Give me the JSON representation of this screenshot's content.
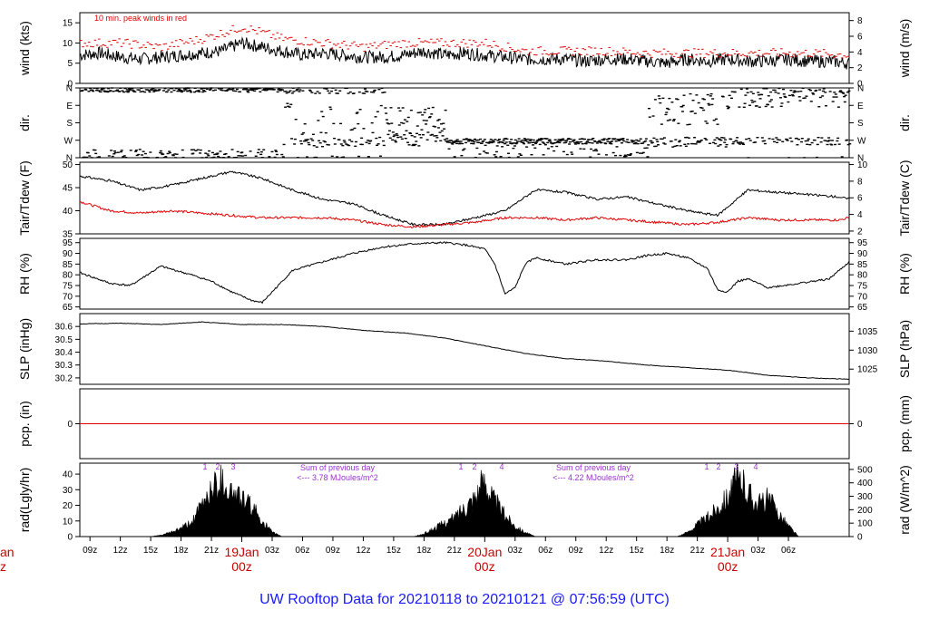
{
  "footer_title": "UW Rooftop Data for 20210118  to  20210121 @ 07:56:59  (UTC)",
  "colors": {
    "black": "#000000",
    "red": "#e00000",
    "purple": "#9933cc",
    "blue": "#1a1aff",
    "darkred": "#cc0000"
  },
  "chart_data": [
    {
      "type": "line",
      "ylabel_left": "wind (kts)",
      "ylabel_right": "wind (m/s)",
      "annotation": "10 min. peak winds in red",
      "ylim": [
        0,
        17.5
      ],
      "yticks_left": [
        0,
        5,
        10,
        15
      ],
      "yticks_right": [
        0,
        2,
        4,
        6,
        8
      ],
      "series": [
        {
          "color": "#000000",
          "x": [
            0,
            2,
            4,
            6,
            8,
            10,
            12,
            14,
            16,
            18,
            20,
            22,
            24,
            26,
            28,
            30,
            32,
            34,
            36,
            38,
            40,
            42,
            44,
            46,
            48,
            50,
            52,
            54,
            56,
            58,
            60,
            62,
            64,
            66,
            68,
            70,
            72,
            74,
            76
          ],
          "values": [
            7,
            7.5,
            6.5,
            6,
            6.5,
            7,
            7.5,
            8,
            10,
            9,
            8,
            7,
            7.5,
            7,
            6.5,
            6.5,
            7,
            8,
            7,
            7.5,
            7,
            6.5,
            6,
            6,
            6,
            5.5,
            6,
            6,
            5.5,
            5,
            6,
            5.5,
            6,
            5.5,
            5.5,
            6,
            5.5,
            5.5,
            5
          ]
        },
        {
          "color": "#e00000",
          "x": [
            0,
            4,
            8,
            12,
            16,
            20,
            24,
            28,
            32,
            36,
            40,
            44,
            48,
            52,
            56,
            60,
            64,
            68,
            72,
            76
          ],
          "values": [
            10,
            10,
            9,
            11,
            14,
            11,
            10,
            9,
            10,
            10,
            10,
            8,
            8,
            8,
            7.5,
            7.5,
            7.5,
            7.5,
            7.5,
            7
          ]
        }
      ]
    },
    {
      "type": "scatter",
      "ylabel_left": "dir.",
      "ylabel_right": "dir.",
      "yticks_left": [
        "N",
        "W",
        "S",
        "E",
        "N"
      ],
      "yticks_right": [
        "N",
        "W",
        "S",
        "E",
        "N"
      ],
      "ylim": [
        0,
        360
      ]
    },
    {
      "type": "line",
      "ylabel_left": "Tair/Tdew (F)",
      "ylabel_right": "Tair/Tdew (C)",
      "ylim": [
        35,
        50.5
      ],
      "yticks_left": [
        35,
        40,
        45,
        50
      ],
      "yticks_right": [
        2,
        4,
        6,
        8,
        10
      ],
      "series": [
        {
          "color": "#000000",
          "x": [
            0,
            3,
            6,
            9,
            12,
            15,
            18,
            21,
            24,
            27,
            30,
            33,
            36,
            39,
            42,
            45,
            48,
            51,
            54,
            57,
            60,
            63,
            66,
            69,
            72,
            75,
            76
          ],
          "values": [
            47.5,
            46.5,
            44.5,
            45.5,
            47,
            48.5,
            47,
            44.5,
            42.5,
            41.5,
            39,
            37,
            37,
            38.5,
            40,
            44.5,
            44,
            42.5,
            43,
            41.5,
            40,
            39,
            44.5,
            44,
            43.5,
            43,
            42.5
          ]
        },
        {
          "color": "#e00000",
          "x": [
            0,
            3,
            6,
            9,
            12,
            15,
            18,
            21,
            24,
            27,
            30,
            33,
            36,
            39,
            42,
            45,
            48,
            51,
            54,
            57,
            60,
            63,
            66,
            69,
            72,
            75,
            76
          ],
          "values": [
            42,
            40,
            39.5,
            40,
            39.5,
            39,
            38.5,
            38.5,
            38.5,
            38,
            37,
            36.5,
            37,
            37.5,
            38.5,
            38.5,
            38,
            38.5,
            38,
            37.5,
            37,
            37.5,
            38.5,
            38,
            38,
            38,
            38.5
          ]
        }
      ]
    },
    {
      "type": "line",
      "ylabel_left": "RH (%)",
      "ylabel_right": "RH (%)",
      "ylim": [
        64,
        97
      ],
      "yticks": [
        65,
        70,
        75,
        80,
        85,
        90,
        95
      ],
      "series": [
        {
          "color": "#000000",
          "x": [
            0,
            3,
            5,
            8,
            11,
            13,
            15,
            17,
            18,
            21,
            24,
            27,
            30,
            33,
            36,
            38,
            40,
            41,
            42,
            43,
            44,
            45,
            48,
            51,
            54,
            56,
            58,
            60,
            62,
            63,
            64,
            65,
            66,
            68,
            71,
            74,
            76
          ],
          "values": [
            81,
            76,
            75,
            84,
            80,
            77,
            72,
            68,
            67,
            82,
            86,
            90,
            93,
            94.5,
            95,
            94,
            92,
            85,
            71,
            74,
            85,
            88,
            85,
            87,
            87,
            89,
            90,
            88,
            83,
            73,
            72,
            77,
            78,
            74,
            76,
            78,
            86
          ]
        }
      ]
    },
    {
      "type": "line",
      "ylabel_left": "SLP (inHg)",
      "ylabel_right": "SLP (hPa)",
      "ylim": [
        30.15,
        30.7
      ],
      "yticks_left": [
        "30.2",
        "30.3",
        "30.4",
        "30.5",
        "30.6"
      ],
      "yticks_right": [
        "1025",
        "1030",
        "1035"
      ],
      "series": [
        {
          "color": "#000000",
          "x": [
            0,
            4,
            8,
            10,
            12,
            16,
            20,
            24,
            28,
            32,
            36,
            40,
            44,
            48,
            52,
            56,
            60,
            64,
            68,
            72,
            76
          ],
          "values": [
            30.62,
            30.625,
            30.615,
            30.625,
            30.635,
            30.615,
            30.615,
            30.6,
            30.57,
            30.55,
            30.51,
            30.45,
            30.39,
            30.35,
            30.33,
            30.3,
            30.28,
            30.26,
            30.22,
            30.2,
            30.19
          ]
        }
      ]
    },
    {
      "type": "line",
      "ylabel_left": "pcp. (in)",
      "ylabel_right": "pcp. (mm)",
      "ylim": [
        -1,
        1
      ],
      "yticks_left": [
        "0"
      ],
      "yticks_right": [
        "0"
      ],
      "series": [
        {
          "color": "#e00000",
          "x": [
            0,
            76
          ],
          "values": [
            0,
            0
          ]
        }
      ]
    },
    {
      "type": "area",
      "ylabel_left": "rad(Lgly/hr)",
      "ylabel_right": "rad (W/m^2)",
      "ylim": [
        0,
        47
      ],
      "yticks_left": [
        0,
        10,
        20,
        30,
        40
      ],
      "yticks_right": [
        0,
        100,
        200,
        300,
        400,
        500
      ],
      "series": [
        {
          "color": "#000000",
          "x": [
            7,
            8,
            9,
            10,
            11,
            12,
            13,
            14,
            15,
            16,
            17,
            18,
            19,
            20,
            33,
            34,
            35,
            36,
            37,
            38,
            39,
            40,
            41,
            42,
            43,
            44,
            45,
            59,
            60,
            61,
            62,
            63,
            64,
            65,
            66,
            67,
            68,
            69,
            70,
            71
          ],
          "values": [
            0,
            1,
            3,
            6,
            10,
            22,
            36,
            42,
            33,
            28,
            22,
            12,
            3,
            0,
            0,
            2,
            6,
            10,
            14,
            22,
            30,
            42,
            26,
            16,
            8,
            3,
            0,
            0,
            3,
            9,
            14,
            22,
            30,
            43,
            34,
            24,
            28,
            18,
            8,
            0
          ]
        }
      ],
      "day_annotations": [
        {
          "line1": "Sum of previous day",
          "line2": "<--- 3.78 MJoules/m^2"
        },
        {
          "line1": "Sum of previous day",
          "line2": "<--- 4.22 MJoules/m^2"
        }
      ],
      "markers": [
        [
          "1",
          "2",
          "3"
        ],
        [
          "1",
          "2",
          "4"
        ],
        [
          "1",
          "2",
          "3",
          "4"
        ]
      ]
    }
  ],
  "x_axis": {
    "hour_labels": [
      "09z",
      "12z",
      "15z",
      "18z",
      "21z",
      "03z",
      "06z",
      "09z",
      "12z",
      "15z",
      "18z",
      "21z",
      "03z",
      "06z",
      "09z",
      "12z",
      "15z",
      "18z",
      "21z",
      "03z",
      "06z"
    ],
    "day_labels": [
      {
        "date": "19Jan",
        "time": "00z"
      },
      {
        "date": "20Jan",
        "time": "00z"
      },
      {
        "date": "21Jan",
        "time": "00z"
      }
    ],
    "left_cut_day": {
      "date": "an",
      "time": "z"
    }
  }
}
